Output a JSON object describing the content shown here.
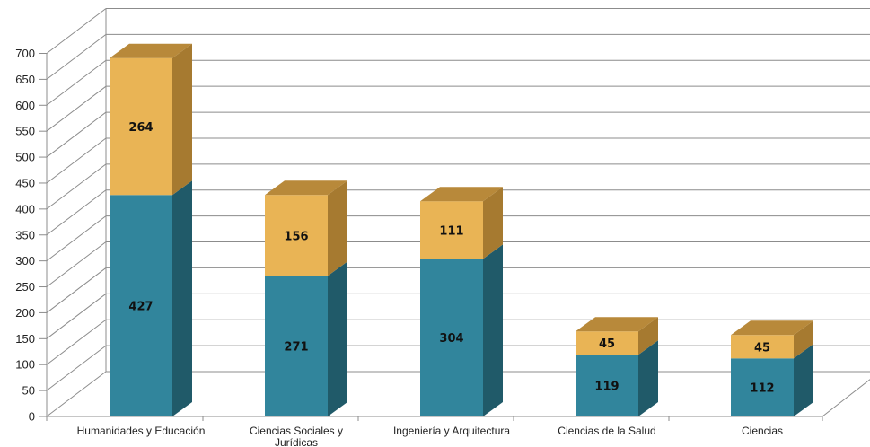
{
  "chart_data": {
    "type": "bar",
    "stacked": true,
    "three_d": true,
    "categories": [
      [
        "Humanidades y Educación"
      ],
      [
        "Ciencias Sociales y",
        "Jurídicas"
      ],
      [
        "Ingeniería y Arquitectura"
      ],
      [
        "Ciencias de la Salud"
      ],
      [
        "Ciencias"
      ]
    ],
    "series": [
      {
        "values": [
          427,
          271,
          304,
          119,
          112
        ],
        "color": "#31859c",
        "side_color": "#205a69",
        "top_color": "#2b7688"
      },
      {
        "values": [
          264,
          156,
          111,
          45,
          45
        ],
        "color": "#e9b455",
        "side_color": "#a67a30",
        "top_color": "#b8893a"
      }
    ],
    "y_ticks": [
      0,
      50,
      100,
      150,
      200,
      250,
      300,
      350,
      400,
      450,
      500,
      550,
      600,
      650,
      700
    ],
    "ylim": [
      0,
      700
    ],
    "grid": true,
    "legend": "none"
  }
}
